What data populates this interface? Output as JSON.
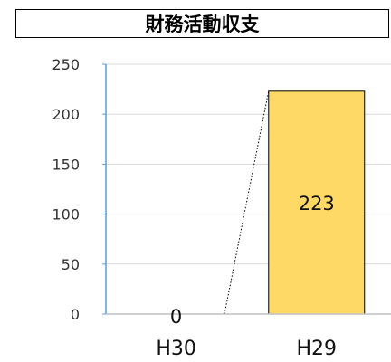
{
  "chart_data": {
    "type": "bar",
    "title": "財務活動収支",
    "categories": [
      "H30",
      "H29"
    ],
    "values": [
      0,
      223
    ],
    "data_labels": [
      "0",
      "223"
    ],
    "ylim": [
      0,
      250
    ],
    "yticks": [
      0,
      50,
      100,
      150,
      200,
      250
    ],
    "grid": true,
    "bar_color": "#ffd966",
    "bar_edge_color": "#000000",
    "axis_color": "#5b9bd5",
    "series_lines": "dotted"
  }
}
